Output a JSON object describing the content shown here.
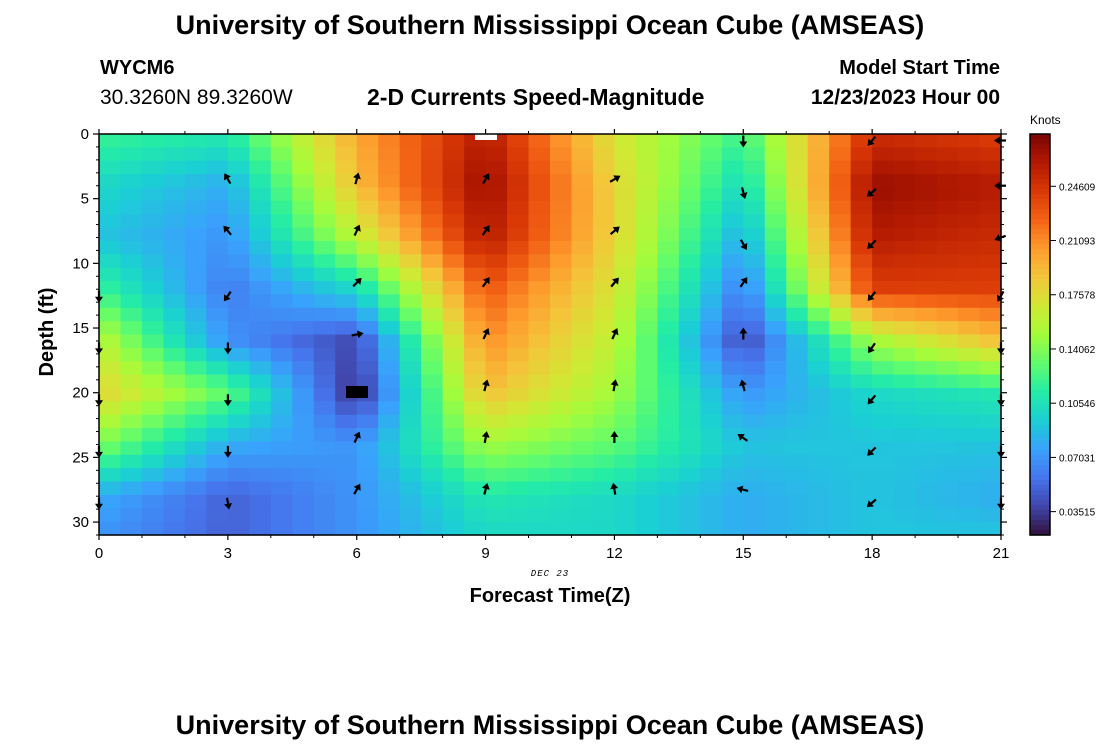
{
  "header": {
    "title": "University of Southern Mississippi Ocean Cube (AMSEAS)",
    "station": "WYCM6",
    "coordinates": "30.3260N  89.3260W",
    "subtitle": "2-D Currents Speed-Magnitude",
    "model_start_label": "Model Start Time",
    "model_start_value": "12/23/2023 Hour 00"
  },
  "footer": {
    "title": "University of Southern Mississippi Ocean Cube (AMSEAS)"
  },
  "colorbar": {
    "units": "Knots",
    "tick_labels": [
      "0.24609",
      "0.21093",
      "0.17578",
      "0.14062",
      "0.10546",
      "0.07031",
      "0.03515"
    ],
    "tick_values": [
      0.24609,
      0.21093,
      0.17578,
      0.14062,
      0.10546,
      0.07031,
      0.03515
    ],
    "range": [
      0.02,
      0.28
    ],
    "colors": [
      "#30123b",
      "#4145ab",
      "#4675ed",
      "#39a2fc",
      "#1bcfd4",
      "#24eca6",
      "#61fc6c",
      "#a4fc3b",
      "#d1e834",
      "#f3c63a",
      "#fe9b2d",
      "#f36315",
      "#d93806",
      "#b11901",
      "#7a0402"
    ]
  },
  "chart_data": {
    "type": "heatmap",
    "title": "2-D Currents Speed-Magnitude",
    "xlabel": "Forecast Time(Z)",
    "ylabel": "Depth (ft)",
    "date_label": "DEC 23",
    "xlim": [
      0,
      21
    ],
    "ylim": [
      0,
      31
    ],
    "y_inverted": true,
    "x_ticks": [
      0,
      3,
      6,
      9,
      12,
      15,
      18,
      21
    ],
    "x_tick_labels": [
      "0",
      "3",
      "6",
      "9",
      "12",
      "15",
      "18",
      "21"
    ],
    "y_ticks": [
      0,
      5,
      10,
      15,
      20,
      25,
      30
    ],
    "y_tick_labels": [
      "0",
      "5",
      "10",
      "15",
      "20",
      "25",
      "30"
    ],
    "speed_keyframes": {
      "hours": [
        0,
        3,
        6,
        9,
        12,
        15,
        18,
        21
      ],
      "depths": [
        0,
        4,
        8,
        12,
        16,
        20,
        24,
        28,
        31
      ],
      "values": [
        [
          0.12,
          0.11,
          0.2,
          0.26,
          0.17,
          0.12,
          0.25,
          0.24
        ],
        [
          0.1,
          0.08,
          0.19,
          0.27,
          0.18,
          0.1,
          0.27,
          0.26
        ],
        [
          0.09,
          0.07,
          0.16,
          0.26,
          0.18,
          0.08,
          0.26,
          0.25
        ],
        [
          0.12,
          0.06,
          0.1,
          0.23,
          0.17,
          0.06,
          0.24,
          0.24
        ],
        [
          0.16,
          0.07,
          0.04,
          0.21,
          0.16,
          0.04,
          0.15,
          0.19
        ],
        [
          0.18,
          0.13,
          0.03,
          0.19,
          0.15,
          0.07,
          0.1,
          0.11
        ],
        [
          0.14,
          0.08,
          0.07,
          0.15,
          0.13,
          0.09,
          0.09,
          0.09
        ],
        [
          0.08,
          0.05,
          0.07,
          0.11,
          0.1,
          0.08,
          0.09,
          0.08
        ],
        [
          0.07,
          0.05,
          0.07,
          0.1,
          0.1,
          0.08,
          0.09,
          0.09
        ]
      ]
    },
    "arrows": [
      {
        "h": 3,
        "d": 3.5,
        "deg": -30
      },
      {
        "h": 3,
        "d": 7.5,
        "deg": -40
      },
      {
        "h": 3,
        "d": 12.5,
        "deg": -145
      },
      {
        "h": 3,
        "d": 16.5,
        "deg": 180
      },
      {
        "h": 3,
        "d": 20.5,
        "deg": 180
      },
      {
        "h": 3,
        "d": 24.5,
        "deg": 180
      },
      {
        "h": 3,
        "d": 28.5,
        "deg": 170
      },
      {
        "h": 6,
        "d": 3.5,
        "deg": 15
      },
      {
        "h": 6,
        "d": 7.5,
        "deg": 25
      },
      {
        "h": 6,
        "d": 11.5,
        "deg": 45
      },
      {
        "h": 6,
        "d": 15.5,
        "deg": 80
      },
      {
        "h": 6,
        "d": 23.5,
        "deg": 25
      },
      {
        "h": 6,
        "d": 27.5,
        "deg": 30
      },
      {
        "h": 9,
        "d": 3.5,
        "deg": 30
      },
      {
        "h": 9,
        "d": 7.5,
        "deg": 35
      },
      {
        "h": 9,
        "d": 11.5,
        "deg": 35
      },
      {
        "h": 9,
        "d": 15.5,
        "deg": 25
      },
      {
        "h": 9,
        "d": 19.5,
        "deg": 15
      },
      {
        "h": 9,
        "d": 23.5,
        "deg": 10
      },
      {
        "h": 9,
        "d": 27.5,
        "deg": 15
      },
      {
        "h": 12,
        "d": 3.5,
        "deg": 60
      },
      {
        "h": 12,
        "d": 7.5,
        "deg": 50
      },
      {
        "h": 12,
        "d": 11.5,
        "deg": 40
      },
      {
        "h": 12,
        "d": 15.5,
        "deg": 25
      },
      {
        "h": 12,
        "d": 19.5,
        "deg": 10
      },
      {
        "h": 12,
        "d": 23.5,
        "deg": 0
      },
      {
        "h": 12,
        "d": 27.5,
        "deg": -10
      },
      {
        "h": 15,
        "d": 0.5,
        "deg": 180
      },
      {
        "h": 15,
        "d": 4.5,
        "deg": 165
      },
      {
        "h": 15,
        "d": 8.5,
        "deg": 150
      },
      {
        "h": 15,
        "d": 11.5,
        "deg": 35
      },
      {
        "h": 15,
        "d": 15.5,
        "deg": 0
      },
      {
        "h": 15,
        "d": 19.5,
        "deg": -15
      },
      {
        "h": 15,
        "d": 23.5,
        "deg": -55
      },
      {
        "h": 15,
        "d": 27.5,
        "deg": -75
      },
      {
        "h": 18,
        "d": 0.5,
        "deg": -140
      },
      {
        "h": 18,
        "d": 4.5,
        "deg": -130
      },
      {
        "h": 18,
        "d": 8.5,
        "deg": -135
      },
      {
        "h": 18,
        "d": 12.5,
        "deg": -140
      },
      {
        "h": 18,
        "d": 16.5,
        "deg": -145
      },
      {
        "h": 18,
        "d": 20.5,
        "deg": -140
      },
      {
        "h": 18,
        "d": 24.5,
        "deg": -135
      },
      {
        "h": 18,
        "d": 28.5,
        "deg": -130
      },
      {
        "h": 21,
        "d": 0.5,
        "deg": -90
      },
      {
        "h": 21,
        "d": 4,
        "deg": -90
      },
      {
        "h": 21,
        "d": 8,
        "deg": -110
      },
      {
        "h": 21,
        "d": 12.5,
        "deg": -150
      },
      {
        "h": 21,
        "d": 16.5,
        "deg": 180
      },
      {
        "h": 21,
        "d": 20.5,
        "deg": 180
      },
      {
        "h": 21,
        "d": 24.5,
        "deg": 180
      },
      {
        "h": 21,
        "d": 28.5,
        "deg": 180
      },
      {
        "h": 0,
        "d": 12.5,
        "deg": 180
      },
      {
        "h": 0,
        "d": 16.5,
        "deg": 180
      },
      {
        "h": 0,
        "d": 20.5,
        "deg": 180
      },
      {
        "h": 0,
        "d": 24.5,
        "deg": 180
      },
      {
        "h": 0,
        "d": 28.5,
        "deg": 180
      }
    ]
  }
}
